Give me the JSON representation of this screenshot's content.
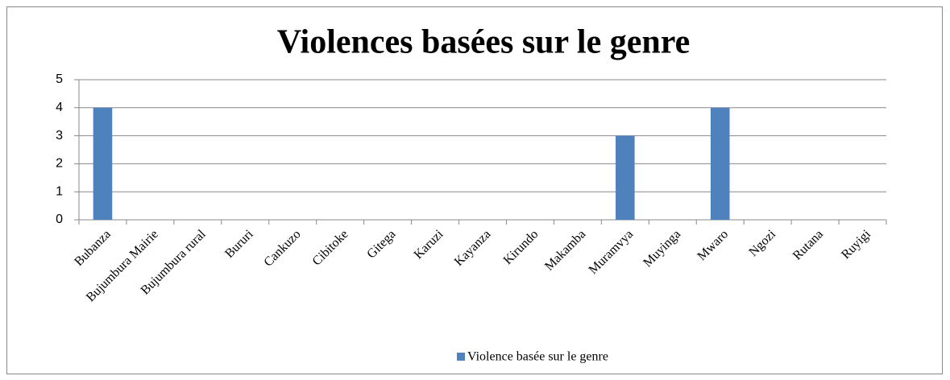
{
  "chart_data": {
    "type": "bar",
    "title": "Violences basées sur le genre",
    "categories": [
      "Bubanza",
      "Bujumbura Mairie",
      "Bujumbura rural",
      "Bururi",
      "Cankuzo",
      "Cibitoke",
      "Gitega",
      "Karuzi",
      "Kayanza",
      "Kirundo",
      "Makamba",
      "Muramvya",
      "Muyinga",
      "Mwaro",
      "Ngozi",
      "Rutana",
      "Ruyigi"
    ],
    "series": [
      {
        "name": "Violence basée sur le genre",
        "color": "#4f81bd",
        "values": [
          4,
          0,
          0,
          0,
          0,
          0,
          0,
          0,
          0,
          0,
          0,
          3,
          0,
          4,
          0,
          0,
          0
        ]
      }
    ],
    "ylim": [
      0,
      5
    ],
    "yticks": [
      0,
      1,
      2,
      3,
      4,
      5
    ],
    "grid": true,
    "legend": "bottom"
  }
}
